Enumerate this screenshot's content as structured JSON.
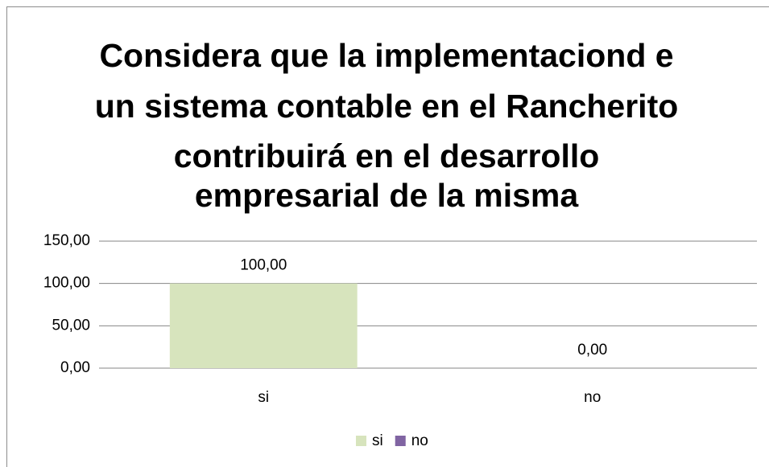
{
  "chart_data": {
    "type": "bar",
    "title": [
      "Considera que la implementaciond e",
      "un sistema contable en el Rancherito",
      "contribuirá en el desarrollo",
      "empresarial de la misma"
    ],
    "categories": [
      "si",
      "no"
    ],
    "values": [
      100,
      0
    ],
    "value_labels": [
      "100,00",
      "0,00"
    ],
    "colors": [
      "#d7e4bd",
      "#8064a2"
    ],
    "ylim": [
      0,
      150
    ],
    "yticks": [
      {
        "value": 0,
        "label": "0,00"
      },
      {
        "value": 50,
        "label": "50,00"
      },
      {
        "value": 100,
        "label": "100,00"
      },
      {
        "value": 150,
        "label": "150,00"
      }
    ],
    "grid": true,
    "legend": "bottom"
  }
}
